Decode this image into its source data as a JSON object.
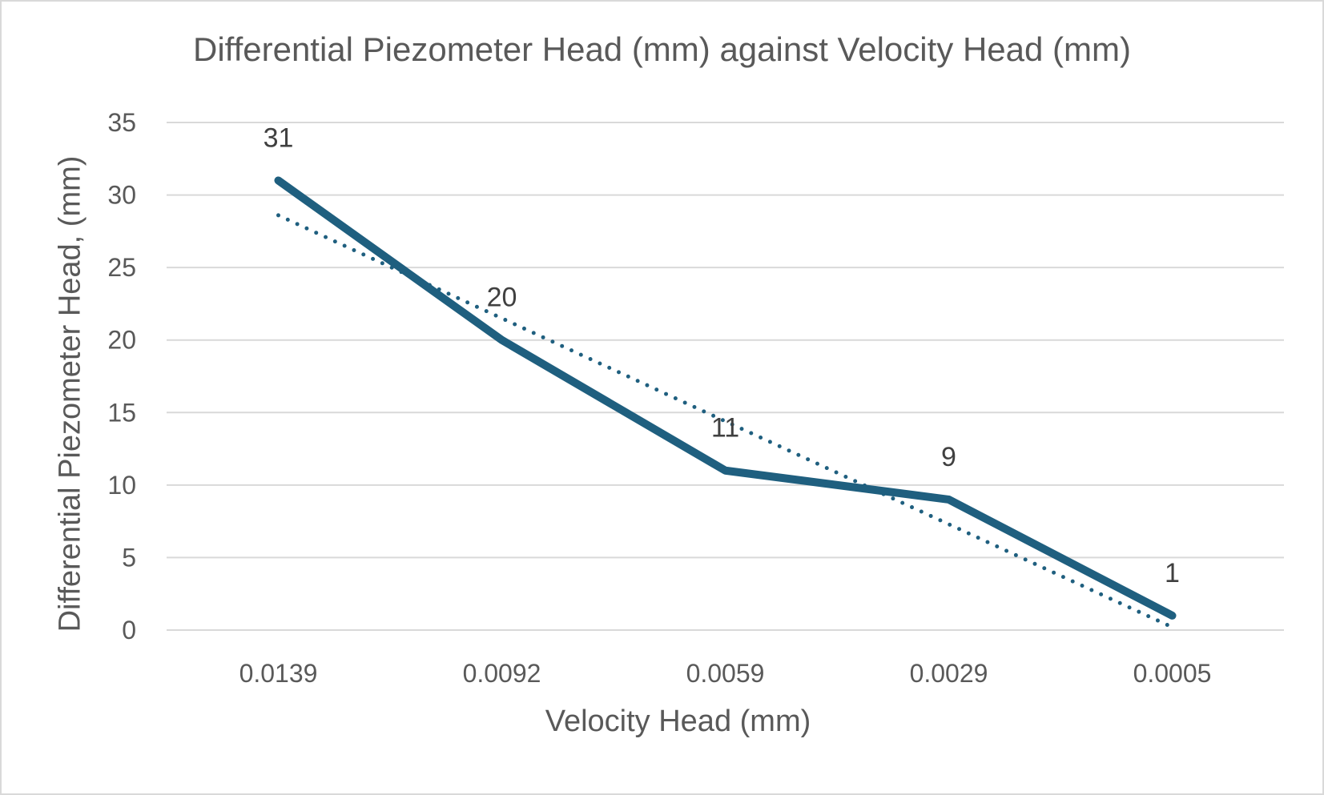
{
  "chart_data": {
    "type": "line",
    "title": "Differential Piezometer Head (mm) against Velocity Head (mm)",
    "xlabel": "Velocity Head (mm)",
    "ylabel": "Differential Piezometer Head, (mm)",
    "categories": [
      "0.0139",
      "0.0092",
      "0.0059",
      "0.0029",
      "0.0005"
    ],
    "series": [
      {
        "values": [
          31,
          20,
          11,
          9,
          1
        ],
        "color": "#1f5f7f",
        "style": "solid",
        "data_labels": [
          "31",
          "20",
          "11",
          "9",
          "1"
        ]
      },
      {
        "trendline": "linear",
        "values": [
          28.6,
          21.5,
          14.4,
          7.3,
          0.2
        ],
        "color": "#1f5f7f",
        "style": "dotted"
      }
    ],
    "ylim": [
      0,
      35
    ],
    "yticks": [
      0,
      5,
      10,
      15,
      20,
      25,
      30,
      35
    ],
    "grid": "horizontal",
    "legend": "none"
  }
}
